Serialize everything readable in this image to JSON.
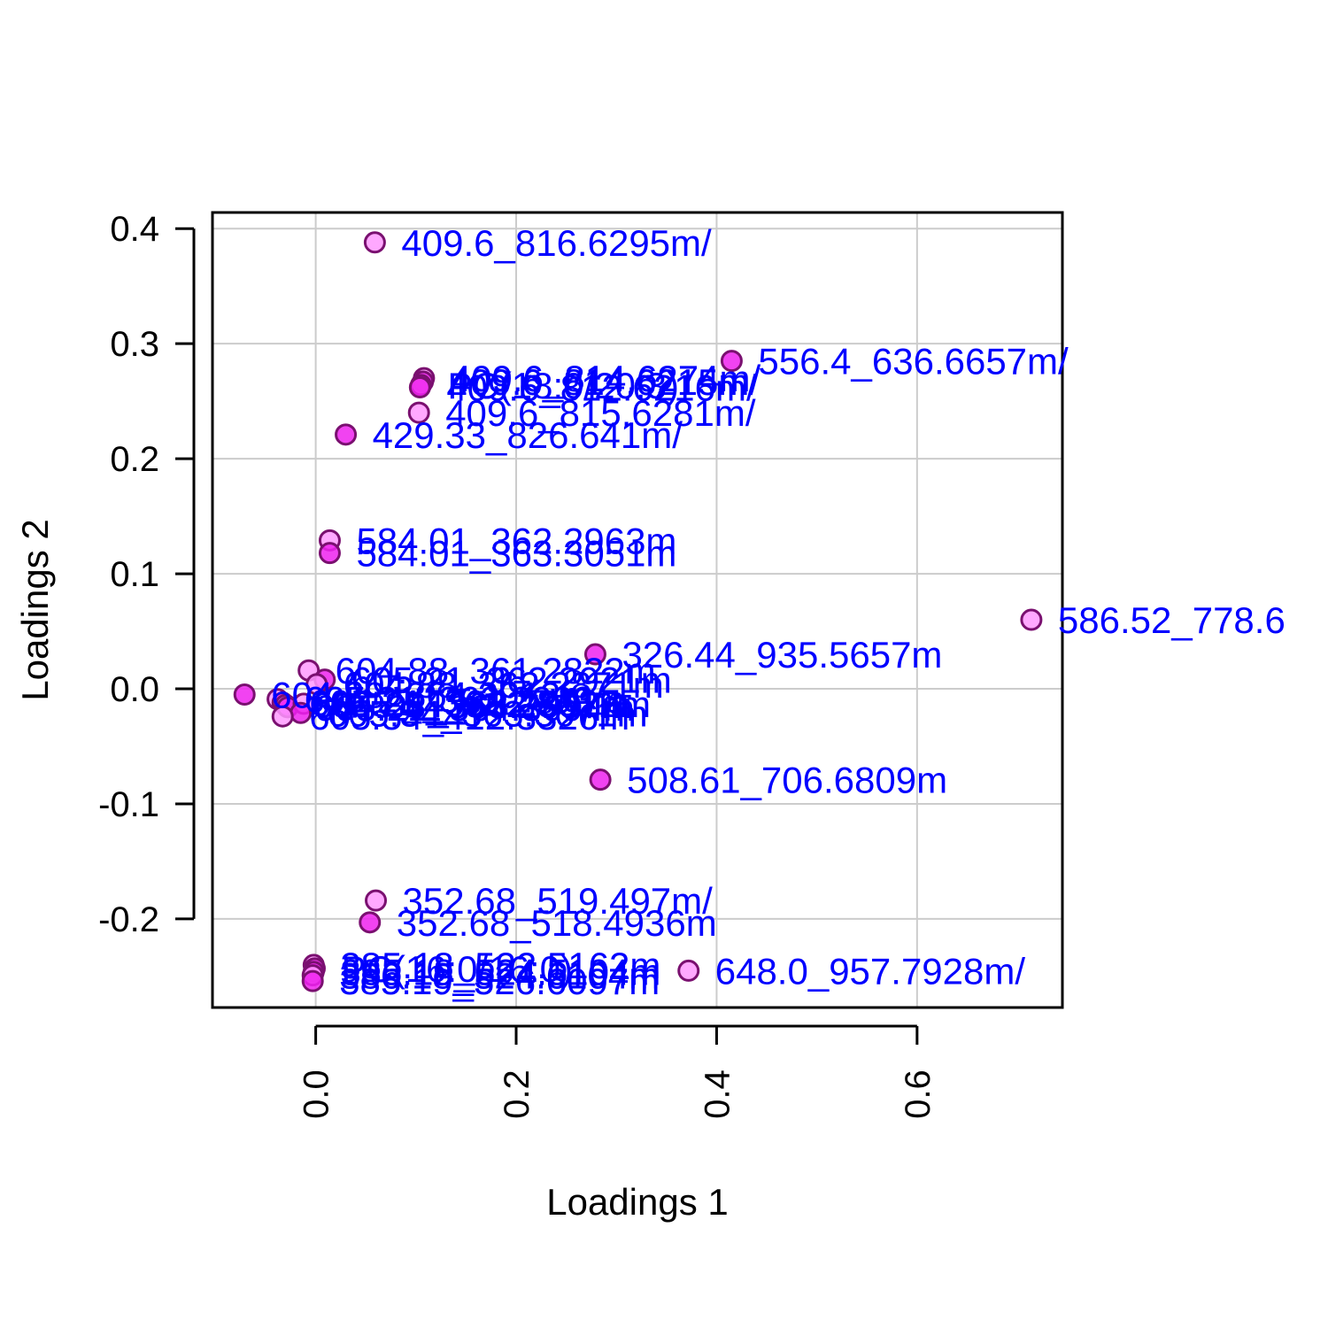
{
  "chart_data": {
    "type": "scatter",
    "title": "",
    "xlabel": "Loadings 1",
    "ylabel": "Loadings 2",
    "xlim": [
      -0.103,
      0.745
    ],
    "ylim": [
      -0.277,
      0.414
    ],
    "xticks": [
      0.0,
      0.2,
      0.4,
      0.6
    ],
    "yticks": [
      -0.2,
      -0.1,
      0.0,
      0.1,
      0.2,
      0.3,
      0.4
    ],
    "xtick_labels": [
      "0.0",
      "0.2",
      "0.4",
      "0.6"
    ],
    "ytick_labels": [
      "-0.2",
      "-0.1",
      "0.0",
      "0.1",
      "0.2",
      "0.3",
      "0.4"
    ],
    "grid": true,
    "colors": {
      "point_fill_light": "#ff99ff",
      "point_fill_strong": "#ee22ee",
      "point_stroke": "#7a1070",
      "label": "#0000ff",
      "grid": "#cccccc",
      "axis": "#000000"
    },
    "points": [
      {
        "x": 0.059,
        "y": 0.388,
        "label": "409.6_816.6295m/"
      },
      {
        "x": 0.415,
        "y": 0.285,
        "label": "556.4_636.6657m/"
      },
      {
        "x": 0.108,
        "y": 0.27,
        "label": "409.6_814.6274m/"
      },
      {
        "x": 0.107,
        "y": 0.267,
        "label": "409.6_814.6215m/"
      },
      {
        "x": 0.105,
        "y": 0.264,
        "label": "PC(18:0/20:3)"
      },
      {
        "x": 0.104,
        "y": 0.262,
        "label": "409.6_812.6216m/"
      },
      {
        "x": 0.103,
        "y": 0.24,
        "label": "409.6_815.6281m/"
      },
      {
        "x": 0.03,
        "y": 0.221,
        "label": "429.33_826.641m/"
      },
      {
        "x": 0.014,
        "y": 0.129,
        "label": "584.01_362.2963m"
      },
      {
        "x": 0.014,
        "y": 0.118,
        "label": "584.01_363.3051m"
      },
      {
        "x": 0.714,
        "y": 0.06,
        "label": "586.52_778.6"
      },
      {
        "x": 0.279,
        "y": 0.03,
        "label": "326.44_935.5657m"
      },
      {
        "x": -0.007,
        "y": 0.016,
        "label": "604.88_361.2822m"
      },
      {
        "x": 0.009,
        "y": 0.008,
        "label": "605.21_362.2921m"
      },
      {
        "x": 0.001,
        "y": 0.004,
        "label": "604.88_362.2871m"
      },
      {
        "x": -0.071,
        "y": -0.005,
        "label": "604.88_364.3012m"
      },
      {
        "x": -0.038,
        "y": -0.009,
        "label": "605.21_363.2993m"
      },
      {
        "x": -0.033,
        "y": -0.012,
        "label": "605.21_361.2852m"
      },
      {
        "x": -0.03,
        "y": -0.014,
        "label": "604.88_363.2957m"
      },
      {
        "x": -0.028,
        "y": -0.016,
        "label": "605.21_364.3094m"
      },
      {
        "x": -0.012,
        "y": -0.013,
        "label": "605.54_362.3012m"
      },
      {
        "x": -0.015,
        "y": -0.021,
        "label": "605.54_363.3071m"
      },
      {
        "x": -0.033,
        "y": -0.024,
        "label": "605.54_412.3326m"
      },
      {
        "x": 0.284,
        "y": -0.079,
        "label": "508.61_706.6809m"
      },
      {
        "x": 0.06,
        "y": -0.184,
        "label": "352.68_519.497m/"
      },
      {
        "x": 0.054,
        "y": -0.203,
        "label": "352.68_518.4936m"
      },
      {
        "x": -0.002,
        "y": -0.24,
        "label": "385.18_522.5162m"
      },
      {
        "x": -0.001,
        "y": -0.243,
        "label": "PC(16:0/16:0)"
      },
      {
        "x": 0.372,
        "y": -0.245,
        "label": "648.0_957.7928m/"
      },
      {
        "x": -0.002,
        "y": -0.246,
        "label": "385.18_524.5104m"
      },
      {
        "x": -0.003,
        "y": -0.249,
        "label": "386.18_524.6104m"
      },
      {
        "x": -0.003,
        "y": -0.254,
        "label": "385.19_526.6097m"
      }
    ]
  }
}
